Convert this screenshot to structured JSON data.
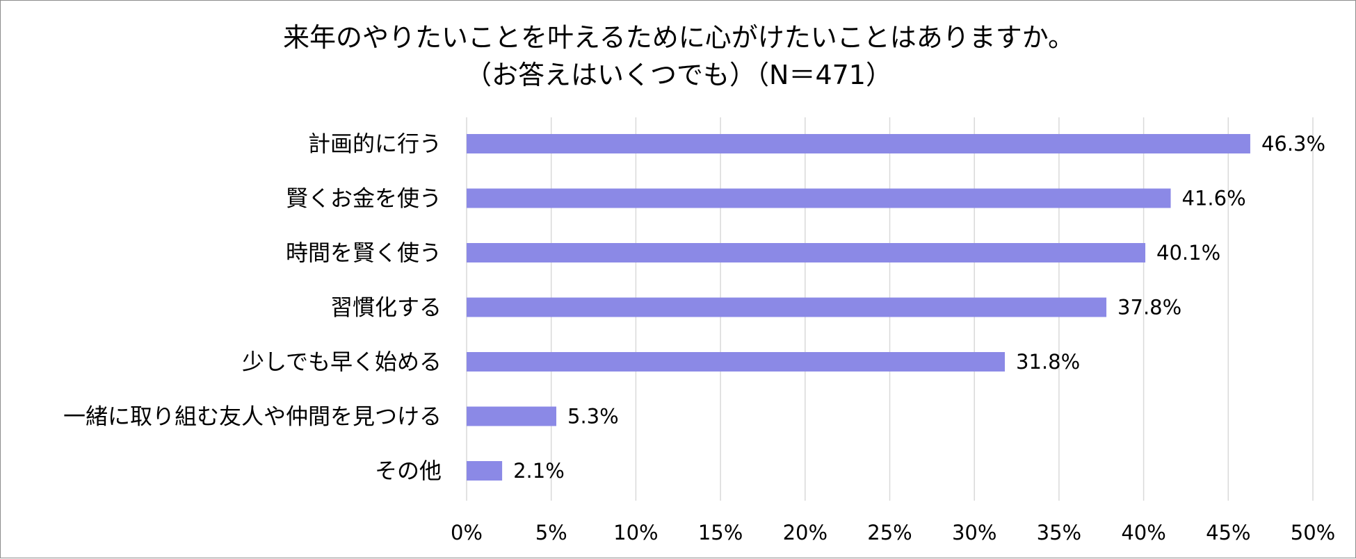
{
  "chart_data": {
    "type": "bar",
    "orientation": "horizontal",
    "title": "来年のやりたいことを叶えるために心がけたいことはありますか。",
    "subtitle": "（お答えはいくつでも）（N＝471）",
    "categories": [
      "計画的に行う",
      "賢くお金を使う",
      "時間を賢く使う",
      "習慣化する",
      "少しでも早く始める",
      "一緒に取り組む友人や仲間を見つける",
      "その他"
    ],
    "values": [
      46.3,
      41.6,
      40.1,
      37.8,
      31.8,
      5.3,
      2.1
    ],
    "value_labels": [
      "46.3%",
      "41.6%",
      "40.1%",
      "37.8%",
      "31.8%",
      "5.3%",
      "2.1%"
    ],
    "xlim": [
      0,
      50
    ],
    "x_ticks": [
      0,
      5,
      10,
      15,
      20,
      25,
      30,
      35,
      40,
      45,
      50
    ],
    "x_tick_labels": [
      "0%",
      "5%",
      "10%",
      "15%",
      "20%",
      "25%",
      "30%",
      "35%",
      "40%",
      "45%",
      "50%"
    ],
    "xlabel": "",
    "ylabel": "",
    "grid": "vertical",
    "legend": "none",
    "bar_color": "#8b89e6",
    "grid_color": "#d9d9d9"
  }
}
